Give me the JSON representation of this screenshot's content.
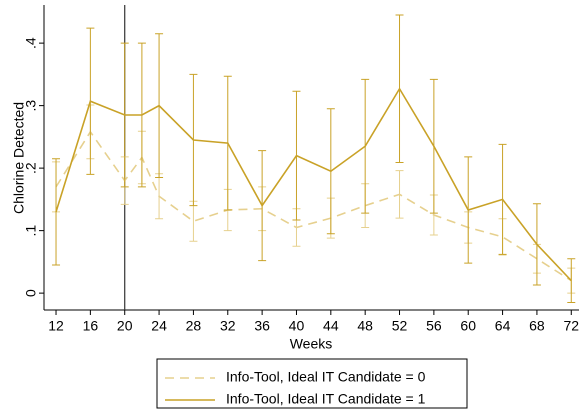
{
  "chart_data": {
    "type": "line",
    "x_label": "Weeks",
    "y_label": "Chlorine Detected",
    "x": [
      12,
      16,
      20,
      22,
      24,
      28,
      32,
      36,
      40,
      44,
      48,
      52,
      56,
      60,
      64,
      68,
      72
    ],
    "series": [
      {
        "name": "Info-Tool, Ideal IT Candidate = 0",
        "color": "#e6d08e",
        "dash": true,
        "values": [
          0.17,
          0.258,
          0.18,
          0.217,
          0.155,
          0.115,
          0.133,
          0.135,
          0.105,
          0.12,
          0.14,
          0.158,
          0.125,
          0.105,
          0.09,
          0.055,
          0.02
        ],
        "errors": [
          0.04,
          0.043,
          0.038,
          0.042,
          0.036,
          0.032,
          0.033,
          0.035,
          0.03,
          0.032,
          0.035,
          0.038,
          0.032,
          0.025,
          0.029,
          0.023,
          0.02
        ]
      },
      {
        "name": "Info-Tool, Ideal IT Candidate = 1",
        "color": "#c9a227",
        "dash": false,
        "values": [
          0.13,
          0.307,
          0.285,
          0.285,
          0.3,
          0.245,
          0.24,
          0.14,
          0.22,
          0.195,
          0.235,
          0.327,
          0.235,
          0.133,
          0.15,
          0.078,
          0.02
        ],
        "errors": [
          0.085,
          0.117,
          0.115,
          0.115,
          0.115,
          0.105,
          0.107,
          0.088,
          0.103,
          0.1,
          0.107,
          0.118,
          0.107,
          0.085,
          0.088,
          0.065,
          0.035
        ]
      }
    ],
    "vline": 20,
    "xlim": [
      10.6,
      72.9
    ],
    "ylim": [
      -0.027,
      0.461
    ],
    "xticks": [
      12,
      16,
      20,
      24,
      28,
      32,
      36,
      40,
      44,
      48,
      52,
      56,
      60,
      64,
      68,
      72
    ],
    "yticks": [
      0,
      {
        "value": 0.1,
        "label": ".1"
      },
      {
        "value": 0.2,
        "label": ".2"
      },
      {
        "value": 0.3,
        "label": ".3"
      },
      {
        "value": 0.4,
        "label": ".4"
      }
    ]
  }
}
